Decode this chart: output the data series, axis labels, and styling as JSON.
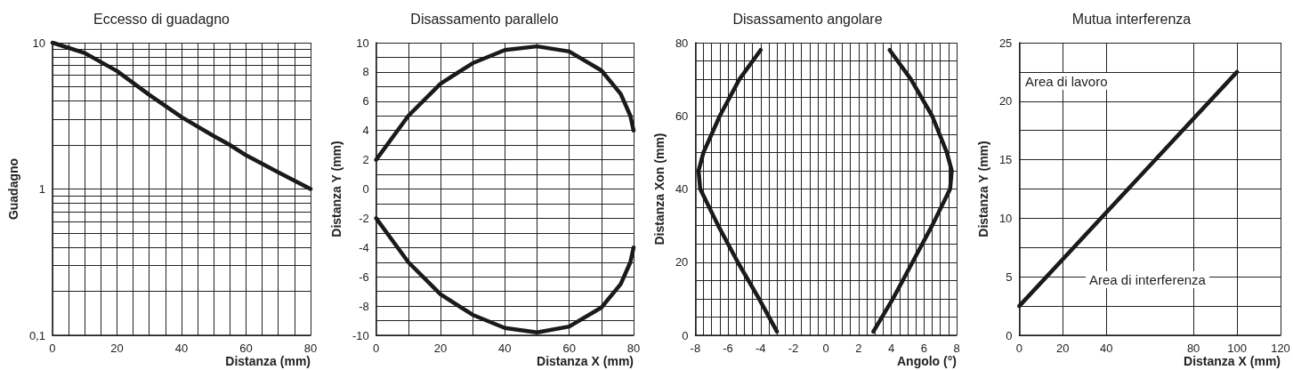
{
  "chart_data": [
    {
      "type": "line",
      "title": "Eccesso di guadagno",
      "xlabel": "Distanza (mm)",
      "ylabel": "Guadagno",
      "log": "y",
      "grid": true,
      "marker": "none",
      "line_style": "solid",
      "xlim": [
        0,
        80
      ],
      "ylim": [
        0.1,
        10
      ],
      "xticks": [
        0,
        {
          "value": 5,
          "label": null
        },
        {
          "value": 10,
          "label": null
        },
        {
          "value": 15,
          "label": null
        },
        20,
        {
          "value": 25,
          "label": null
        },
        {
          "value": 30,
          "label": null
        },
        {
          "value": 35,
          "label": null
        },
        40,
        {
          "value": 45,
          "label": null
        },
        {
          "value": 50,
          "label": null
        },
        {
          "value": 55,
          "label": null
        },
        60,
        {
          "value": 65,
          "label": null
        },
        {
          "value": 70,
          "label": null
        },
        {
          "value": 75,
          "label": null
        },
        80
      ],
      "yticks": [
        {
          "value": 0.1,
          "label": "0,1"
        },
        {
          "value": 0.2,
          "label": null
        },
        {
          "value": 0.3,
          "label": null
        },
        {
          "value": 0.4,
          "label": null
        },
        {
          "value": 0.5,
          "label": null
        },
        {
          "value": 0.6,
          "label": null
        },
        {
          "value": 0.7,
          "label": null
        },
        {
          "value": 0.8,
          "label": null
        },
        {
          "value": 0.9,
          "label": null
        },
        1,
        {
          "value": 2,
          "label": null
        },
        {
          "value": 3,
          "label": null
        },
        {
          "value": 4,
          "label": null
        },
        {
          "value": 5,
          "label": null
        },
        {
          "value": 6,
          "label": null
        },
        {
          "value": 7,
          "label": null
        },
        {
          "value": 8,
          "label": null
        },
        {
          "value": 9,
          "label": null
        },
        10
      ],
      "series": [
        {
          "color": "#1a1a1a",
          "x": [
            0,
            10,
            20,
            30,
            40,
            50,
            55,
            60,
            70,
            80
          ],
          "values": [
            10,
            8.5,
            6.4,
            4.4,
            3.1,
            2.3,
            2.0,
            1.7,
            1.3,
            1.0
          ]
        }
      ]
    },
    {
      "type": "line",
      "title": "Disassamento parallelo",
      "xlabel": "Distanza X (mm)",
      "ylabel": "Distanza Y (mm)",
      "grid": true,
      "marker": "none",
      "line_style": "solid",
      "xlim": [
        0,
        80
      ],
      "ylim": [
        -10,
        10
      ],
      "xticks": [
        0,
        {
          "value": 10,
          "label": null
        },
        20,
        {
          "value": 30,
          "label": null
        },
        40,
        {
          "value": 50,
          "label": null
        },
        60,
        {
          "value": 70,
          "label": null
        },
        80
      ],
      "yticks": [
        -10,
        {
          "value": -9,
          "label": null
        },
        -8,
        {
          "value": -7,
          "label": null
        },
        -6,
        {
          "value": -5,
          "label": null
        },
        -4,
        {
          "value": -3,
          "label": null
        },
        -2,
        {
          "value": -1,
          "label": null
        },
        0,
        {
          "value": 1,
          "label": null
        },
        2,
        {
          "value": 3,
          "label": null
        },
        4,
        {
          "value": 5,
          "label": null
        },
        6,
        {
          "value": 7,
          "label": null
        },
        8,
        {
          "value": 9,
          "label": null
        },
        10
      ],
      "series": [
        {
          "color": "#1a1a1a",
          "x": [
            0,
            10,
            20,
            30,
            40,
            50,
            60,
            70,
            76,
            79,
            80
          ],
          "values": [
            2,
            5.0,
            7.2,
            8.6,
            9.5,
            9.75,
            9.4,
            8.1,
            6.5,
            5.0,
            4.0
          ]
        },
        {
          "color": "#1a1a1a",
          "x": [
            0,
            10,
            20,
            30,
            40,
            50,
            60,
            70,
            76,
            79,
            80
          ],
          "values": [
            -2,
            -5.0,
            -7.2,
            -8.6,
            -9.5,
            -9.8,
            -9.4,
            -8.1,
            -6.5,
            -5.0,
            -4.0
          ]
        }
      ]
    },
    {
      "type": "line",
      "title": "Disassamento angolare",
      "xlabel": "Angolo (°)",
      "ylabel": "Distanza Xon (mm)",
      "grid": true,
      "marker": "none",
      "line_style": "solid",
      "xlim": [
        -8,
        8
      ],
      "ylim": [
        0,
        80
      ],
      "xticks": [
        -8,
        {
          "value": -7.5,
          "label": null
        },
        {
          "value": -7,
          "label": null
        },
        {
          "value": -6.5,
          "label": null
        },
        -6,
        {
          "value": -5.5,
          "label": null
        },
        {
          "value": -5,
          "label": null
        },
        {
          "value": -4.5,
          "label": null
        },
        -4,
        {
          "value": -3.5,
          "label": null
        },
        {
          "value": -3,
          "label": null
        },
        {
          "value": -2.5,
          "label": null
        },
        -2,
        {
          "value": -1.5,
          "label": null
        },
        {
          "value": -1,
          "label": null
        },
        {
          "value": -0.5,
          "label": null
        },
        0,
        {
          "value": 0.5,
          "label": null
        },
        {
          "value": 1,
          "label": null
        },
        {
          "value": 1.5,
          "label": null
        },
        2,
        {
          "value": 2.5,
          "label": null
        },
        {
          "value": 3,
          "label": null
        },
        {
          "value": 3.5,
          "label": null
        },
        4,
        {
          "value": 4.5,
          "label": null
        },
        {
          "value": 5,
          "label": null
        },
        {
          "value": 5.5,
          "label": null
        },
        6,
        {
          "value": 6.5,
          "label": null
        },
        {
          "value": 7,
          "label": null
        },
        {
          "value": 7.5,
          "label": null
        },
        8
      ],
      "yticks": [
        0,
        {
          "value": 5,
          "label": null
        },
        {
          "value": 10,
          "label": null
        },
        {
          "value": 15,
          "label": null
        },
        20,
        {
          "value": 25,
          "label": null
        },
        {
          "value": 30,
          "label": null
        },
        {
          "value": 35,
          "label": null
        },
        40,
        {
          "value": 45,
          "label": null
        },
        {
          "value": 50,
          "label": null
        },
        {
          "value": 55,
          "label": null
        },
        60,
        {
          "value": 65,
          "label": null
        },
        {
          "value": 70,
          "label": null
        },
        {
          "value": 75,
          "label": null
        },
        80
      ],
      "series": [
        {
          "color": "#1a1a1a",
          "x": [
            -3.0,
            -4.1,
            -5.4,
            -6.6,
            -7.7,
            -7.8,
            -7.5,
            -6.5,
            -5.3,
            -4.0
          ],
          "values": [
            1,
            10,
            20,
            30,
            40,
            45,
            50,
            60,
            70,
            78
          ]
        },
        {
          "color": "#1a1a1a",
          "x": [
            2.9,
            4.1,
            5.3,
            6.5,
            7.6,
            7.7,
            7.4,
            6.5,
            5.2,
            3.9
          ],
          "values": [
            1,
            10,
            20,
            30,
            40,
            45,
            50,
            60,
            70,
            78
          ]
        }
      ]
    },
    {
      "type": "line",
      "title": "Mutua interferenza",
      "xlabel": "Distanza X (mm)",
      "ylabel": "Distanza Y (mm)",
      "grid": true,
      "marker": "none",
      "line_style": "solid",
      "annotations": [
        "Area di lavoro",
        "Area di interferenza"
      ],
      "xlim": [
        0,
        120
      ],
      "ylim": [
        0,
        25
      ],
      "xticks": [
        0,
        20,
        40,
        80,
        100,
        120
      ],
      "yticks": [
        0,
        {
          "value": 2.5,
          "label": null
        },
        5,
        {
          "value": 7.5,
          "label": null
        },
        10,
        {
          "value": 12.5,
          "label": null
        },
        15,
        {
          "value": 17.5,
          "label": null
        },
        20,
        {
          "value": 22.5,
          "label": null
        },
        25
      ],
      "series": [
        {
          "color": "#1a1a1a",
          "x": [
            0,
            100
          ],
          "values": [
            2.5,
            22.5
          ]
        }
      ]
    }
  ]
}
